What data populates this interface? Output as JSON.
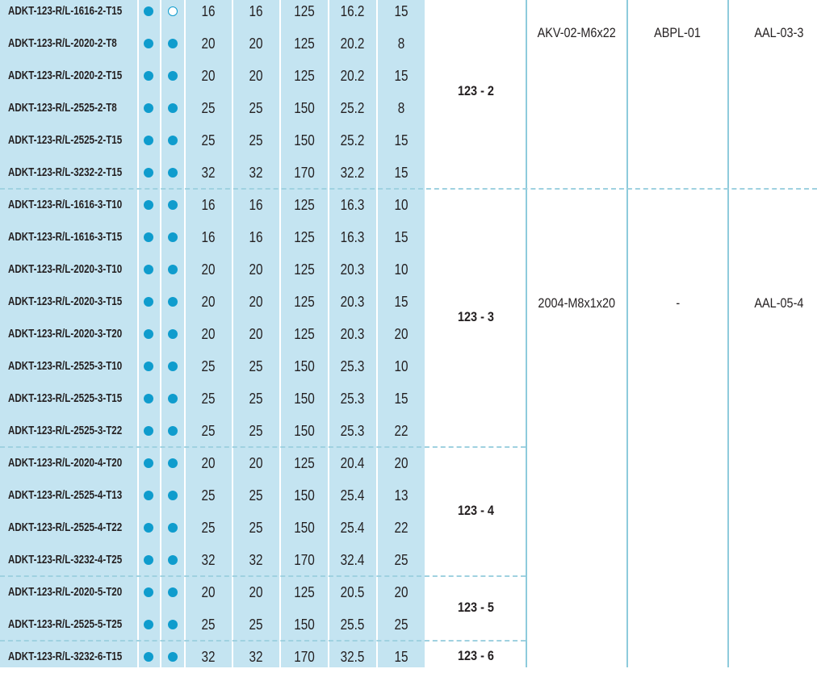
{
  "colors": {
    "table_bg": "#c4e4f1",
    "dot": "#0f9ccd",
    "rule": "#8ecbdc"
  },
  "rows": [
    {
      "code": "ADKT-123-R/L-1616-2-T15",
      "a": "filled",
      "b": "open",
      "v": [
        "16",
        "16",
        "125",
        "16.2",
        "15"
      ]
    },
    {
      "code": "ADKT-123-R/L-2020-2-T8",
      "a": "filled",
      "b": "filled",
      "v": [
        "20",
        "20",
        "125",
        "20.2",
        "8"
      ]
    },
    {
      "code": "ADKT-123-R/L-2020-2-T15",
      "a": "filled",
      "b": "filled",
      "v": [
        "20",
        "20",
        "125",
        "20.2",
        "15"
      ]
    },
    {
      "code": "ADKT-123-R/L-2525-2-T8",
      "a": "filled",
      "b": "filled",
      "v": [
        "25",
        "25",
        "150",
        "25.2",
        "8"
      ]
    },
    {
      "code": "ADKT-123-R/L-2525-2-T15",
      "a": "filled",
      "b": "filled",
      "v": [
        "25",
        "25",
        "150",
        "25.2",
        "15"
      ]
    },
    {
      "code": "ADKT-123-R/L-3232-2-T15",
      "a": "filled",
      "b": "filled",
      "v": [
        "32",
        "32",
        "170",
        "32.2",
        "15"
      ]
    },
    {
      "code": "ADKT-123-R/L-1616-3-T10",
      "a": "filled",
      "b": "filled",
      "v": [
        "16",
        "16",
        "125",
        "16.3",
        "10"
      ]
    },
    {
      "code": "ADKT-123-R/L-1616-3-T15",
      "a": "filled",
      "b": "filled",
      "v": [
        "16",
        "16",
        "125",
        "16.3",
        "15"
      ]
    },
    {
      "code": "ADKT-123-R/L-2020-3-T10",
      "a": "filled",
      "b": "filled",
      "v": [
        "20",
        "20",
        "125",
        "20.3",
        "10"
      ]
    },
    {
      "code": "ADKT-123-R/L-2020-3-T15",
      "a": "filled",
      "b": "filled",
      "v": [
        "20",
        "20",
        "125",
        "20.3",
        "15"
      ]
    },
    {
      "code": "ADKT-123-R/L-2020-3-T20",
      "a": "filled",
      "b": "filled",
      "v": [
        "20",
        "20",
        "125",
        "20.3",
        "20"
      ]
    },
    {
      "code": "ADKT-123-R/L-2525-3-T10",
      "a": "filled",
      "b": "filled",
      "v": [
        "25",
        "25",
        "150",
        "25.3",
        "10"
      ]
    },
    {
      "code": "ADKT-123-R/L-2525-3-T15",
      "a": "filled",
      "b": "filled",
      "v": [
        "25",
        "25",
        "150",
        "25.3",
        "15"
      ]
    },
    {
      "code": "ADKT-123-R/L-2525-3-T22",
      "a": "filled",
      "b": "filled",
      "v": [
        "25",
        "25",
        "150",
        "25.3",
        "22"
      ]
    },
    {
      "code": "ADKT-123-R/L-2020-4-T20",
      "a": "filled",
      "b": "filled",
      "v": [
        "20",
        "20",
        "125",
        "20.4",
        "20"
      ]
    },
    {
      "code": "ADKT-123-R/L-2525-4-T13",
      "a": "filled",
      "b": "filled",
      "v": [
        "25",
        "25",
        "150",
        "25.4",
        "13"
      ]
    },
    {
      "code": "ADKT-123-R/L-2525-4-T22",
      "a": "filled",
      "b": "filled",
      "v": [
        "25",
        "25",
        "150",
        "25.4",
        "22"
      ]
    },
    {
      "code": "ADKT-123-R/L-3232-4-T25",
      "a": "filled",
      "b": "filled",
      "v": [
        "32",
        "32",
        "170",
        "32.4",
        "25"
      ]
    },
    {
      "code": "ADKT-123-R/L-2020-5-T20",
      "a": "filled",
      "b": "filled",
      "v": [
        "20",
        "20",
        "125",
        "20.5",
        "20"
      ]
    },
    {
      "code": "ADKT-123-R/L-2525-5-T25",
      "a": "filled",
      "b": "filled",
      "v": [
        "25",
        "25",
        "150",
        "25.5",
        "25"
      ]
    },
    {
      "code": "ADKT-123-R/L-3232-6-T15",
      "a": "filled",
      "b": "filled",
      "v": [
        "32",
        "32",
        "170",
        "32.5",
        "15"
      ]
    }
  ],
  "groups": [
    {
      "label": "123 - 2",
      "first": 0,
      "last": 5
    },
    {
      "label": "123 - 3",
      "first": 6,
      "last": 13
    },
    {
      "label": "123 - 4",
      "first": 14,
      "last": 17
    },
    {
      "label": "123 - 5",
      "first": 18,
      "last": 19
    },
    {
      "label": "123 - 6",
      "first": 20,
      "last": 20
    }
  ],
  "accessories": [
    {
      "first": 0,
      "last": 5,
      "screw": "AKV-02-M6x22",
      "plate": "ABPL-01",
      "key": "AAL-03-3"
    },
    {
      "first": 6,
      "last": 20,
      "screw": "2004-M8x1x20",
      "plate": "-",
      "key": "AAL-05-4"
    }
  ]
}
